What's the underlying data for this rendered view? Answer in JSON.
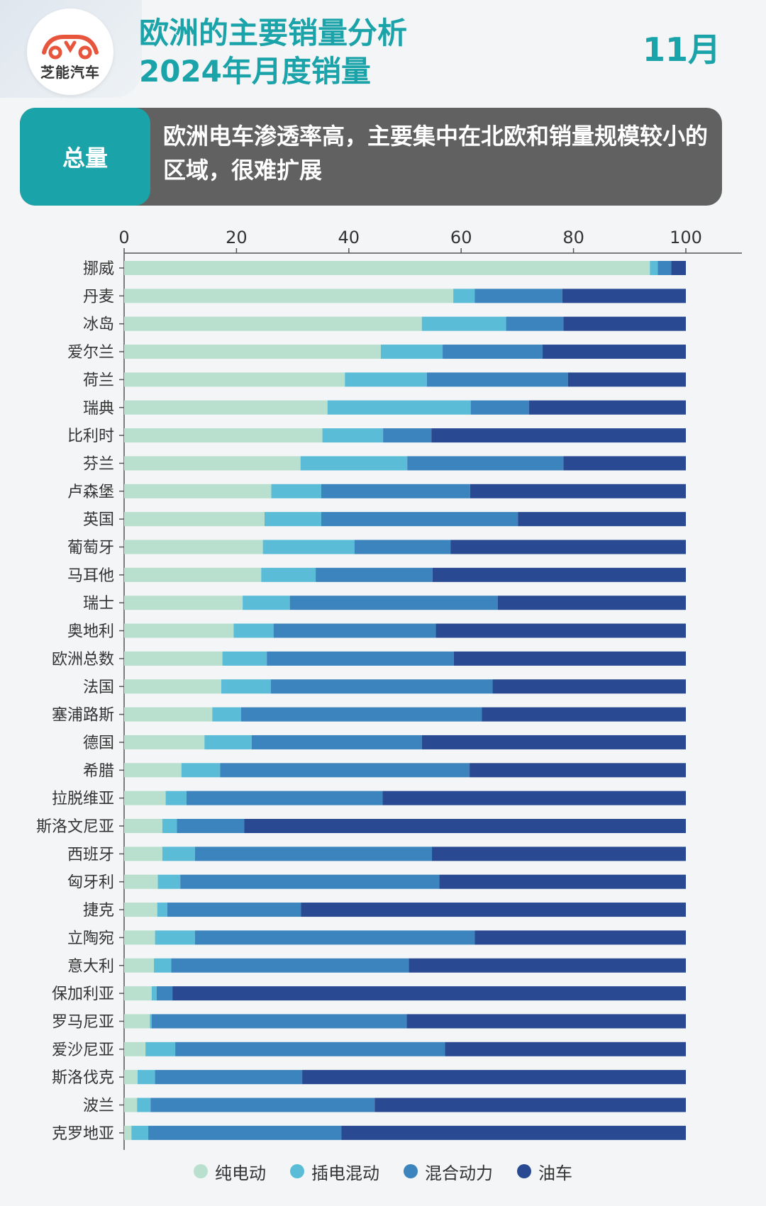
{
  "logo": {
    "text": "芝能汽车",
    "color": "#e8553d"
  },
  "header": {
    "title_line1": "欧洲的主要销量分析",
    "title_line2": "2024年月度销量",
    "month": "11月"
  },
  "summary": {
    "tag": "总量",
    "text": "欧洲电车渗透率高，主要集中在北欧和销量规模较小的区域，很难扩展"
  },
  "colors": {
    "accent": "#1aa3a9",
    "panel": "#616161",
    "bev": "#b9e0cf",
    "phev": "#5bbcd7",
    "hev": "#3b84bd",
    "ice": "#294a93"
  },
  "chart_data": {
    "type": "bar",
    "orientation": "horizontal",
    "stacked": true,
    "xlim": [
      0,
      100
    ],
    "xticks": [
      0,
      20,
      40,
      60,
      80,
      100
    ],
    "categories": [
      "挪威",
      "丹麦",
      "冰岛",
      "爱尔兰",
      "荷兰",
      "瑞典",
      "比利时",
      "芬兰",
      "卢森堡",
      "英国",
      "葡萄牙",
      "马耳他",
      "瑞士",
      "奥地利",
      "欧洲总数",
      "法国",
      "塞浦路斯",
      "德国",
      "希腊",
      "拉脱维亚",
      "斯洛文尼亚",
      "西班牙",
      "匈牙利",
      "捷克",
      "立陶宛",
      "意大利",
      "保加利亚",
      "罗马尼亚",
      "爱沙尼亚",
      "斯洛伐克",
      "波兰",
      "克罗地亚"
    ],
    "series": [
      {
        "name": "纯电动",
        "color": "#b9e0cf",
        "values": [
          93.6,
          58.6,
          53.0,
          45.7,
          39.3,
          36.2,
          35.3,
          31.4,
          26.2,
          25.0,
          24.7,
          24.4,
          21.1,
          19.5,
          17.5,
          17.3,
          15.7,
          14.3,
          10.2,
          7.4,
          6.8,
          6.8,
          6.0,
          5.9,
          5.5,
          5.3,
          4.9,
          4.6,
          3.8,
          2.4,
          2.3,
          1.3
        ]
      },
      {
        "name": "插电混动",
        "color": "#5bbcd7",
        "values": [
          1.4,
          3.8,
          15.0,
          11.0,
          14.6,
          25.5,
          10.8,
          19.0,
          8.9,
          10.1,
          16.3,
          9.7,
          8.4,
          7.1,
          7.9,
          8.8,
          5.1,
          8.4,
          6.9,
          3.7,
          2.6,
          5.8,
          4.0,
          1.8,
          7.1,
          3.1,
          0.9,
          0.3,
          5.3,
          3.1,
          2.4,
          3.0
        ]
      },
      {
        "name": "混合动力",
        "color": "#3b84bd",
        "values": [
          2.4,
          15.6,
          10.2,
          17.8,
          25.1,
          10.4,
          8.6,
          27.8,
          26.5,
          35.0,
          17.1,
          20.8,
          37.0,
          28.9,
          33.3,
          39.5,
          42.9,
          30.3,
          44.4,
          34.9,
          12.0,
          42.2,
          46.1,
          23.8,
          49.8,
          42.3,
          2.8,
          45.4,
          48.0,
          26.2,
          39.9,
          34.4
        ]
      },
      {
        "name": "油车",
        "color": "#294a93",
        "values": [
          2.6,
          22.0,
          21.8,
          25.5,
          21.0,
          27.9,
          45.3,
          21.8,
          38.4,
          29.9,
          41.9,
          45.1,
          33.5,
          44.5,
          41.3,
          34.4,
          36.3,
          47.0,
          38.5,
          54.0,
          78.6,
          45.2,
          43.9,
          68.5,
          37.6,
          49.3,
          91.4,
          49.7,
          42.9,
          68.3,
          55.4,
          61.3
        ]
      }
    ]
  }
}
